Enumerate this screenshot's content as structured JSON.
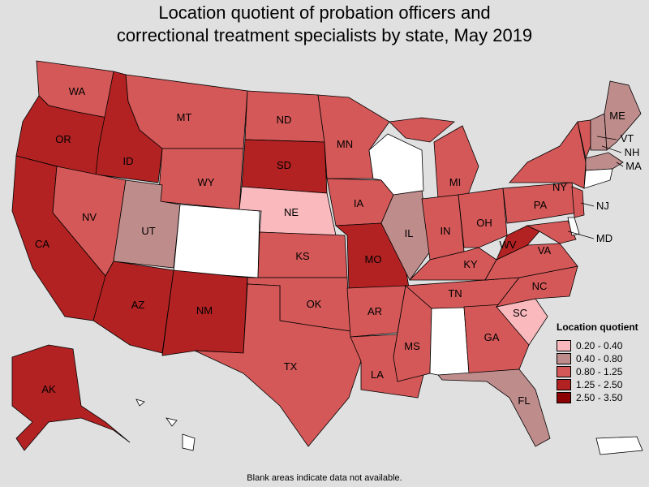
{
  "title_line1": "Location quotient of probation officers and",
  "title_line2": "correctional treatment specialists by state, May 2019",
  "legend": {
    "title": "Location quotient",
    "items": [
      {
        "label": "0.20 - 0.40",
        "color": "#f9b9bd"
      },
      {
        "label": "0.40 - 0.80",
        "color": "#bf8c8c"
      },
      {
        "label": "0.80 - 1.25",
        "color": "#d45858"
      },
      {
        "label": "1.25 - 2.50",
        "color": "#b22222"
      },
      {
        "label": "2.50 - 3.50",
        "color": "#8b0000"
      }
    ]
  },
  "footnote": "Blank areas indicate data not available.",
  "states": {
    "WA": "WA",
    "OR": "OR",
    "CA": "CA",
    "ID": "ID",
    "NV": "NV",
    "MT": "MT",
    "WY": "WY",
    "UT": "UT",
    "AZ": "AZ",
    "NM": "NM",
    "ND": "ND",
    "SD": "SD",
    "NE": "NE",
    "KS": "KS",
    "OK": "OK",
    "TX": "TX",
    "MN": "MN",
    "IA": "IA",
    "MO": "MO",
    "AR": "AR",
    "LA": "LA",
    "IL": "IL",
    "MS": "MS",
    "MI": "MI",
    "IN": "IN",
    "KY": "KY",
    "TN": "TN",
    "OH": "OH",
    "GA": "GA",
    "FL": "FL",
    "SC": "SC",
    "NC": "NC",
    "VA": "VA",
    "WV": "WV",
    "PA": "PA",
    "NY": "NY",
    "ME": "ME",
    "VT": "VT",
    "NH": "NH",
    "MA": "MA",
    "NJ": "NJ",
    "MD": "MD",
    "AK": "AK"
  }
}
